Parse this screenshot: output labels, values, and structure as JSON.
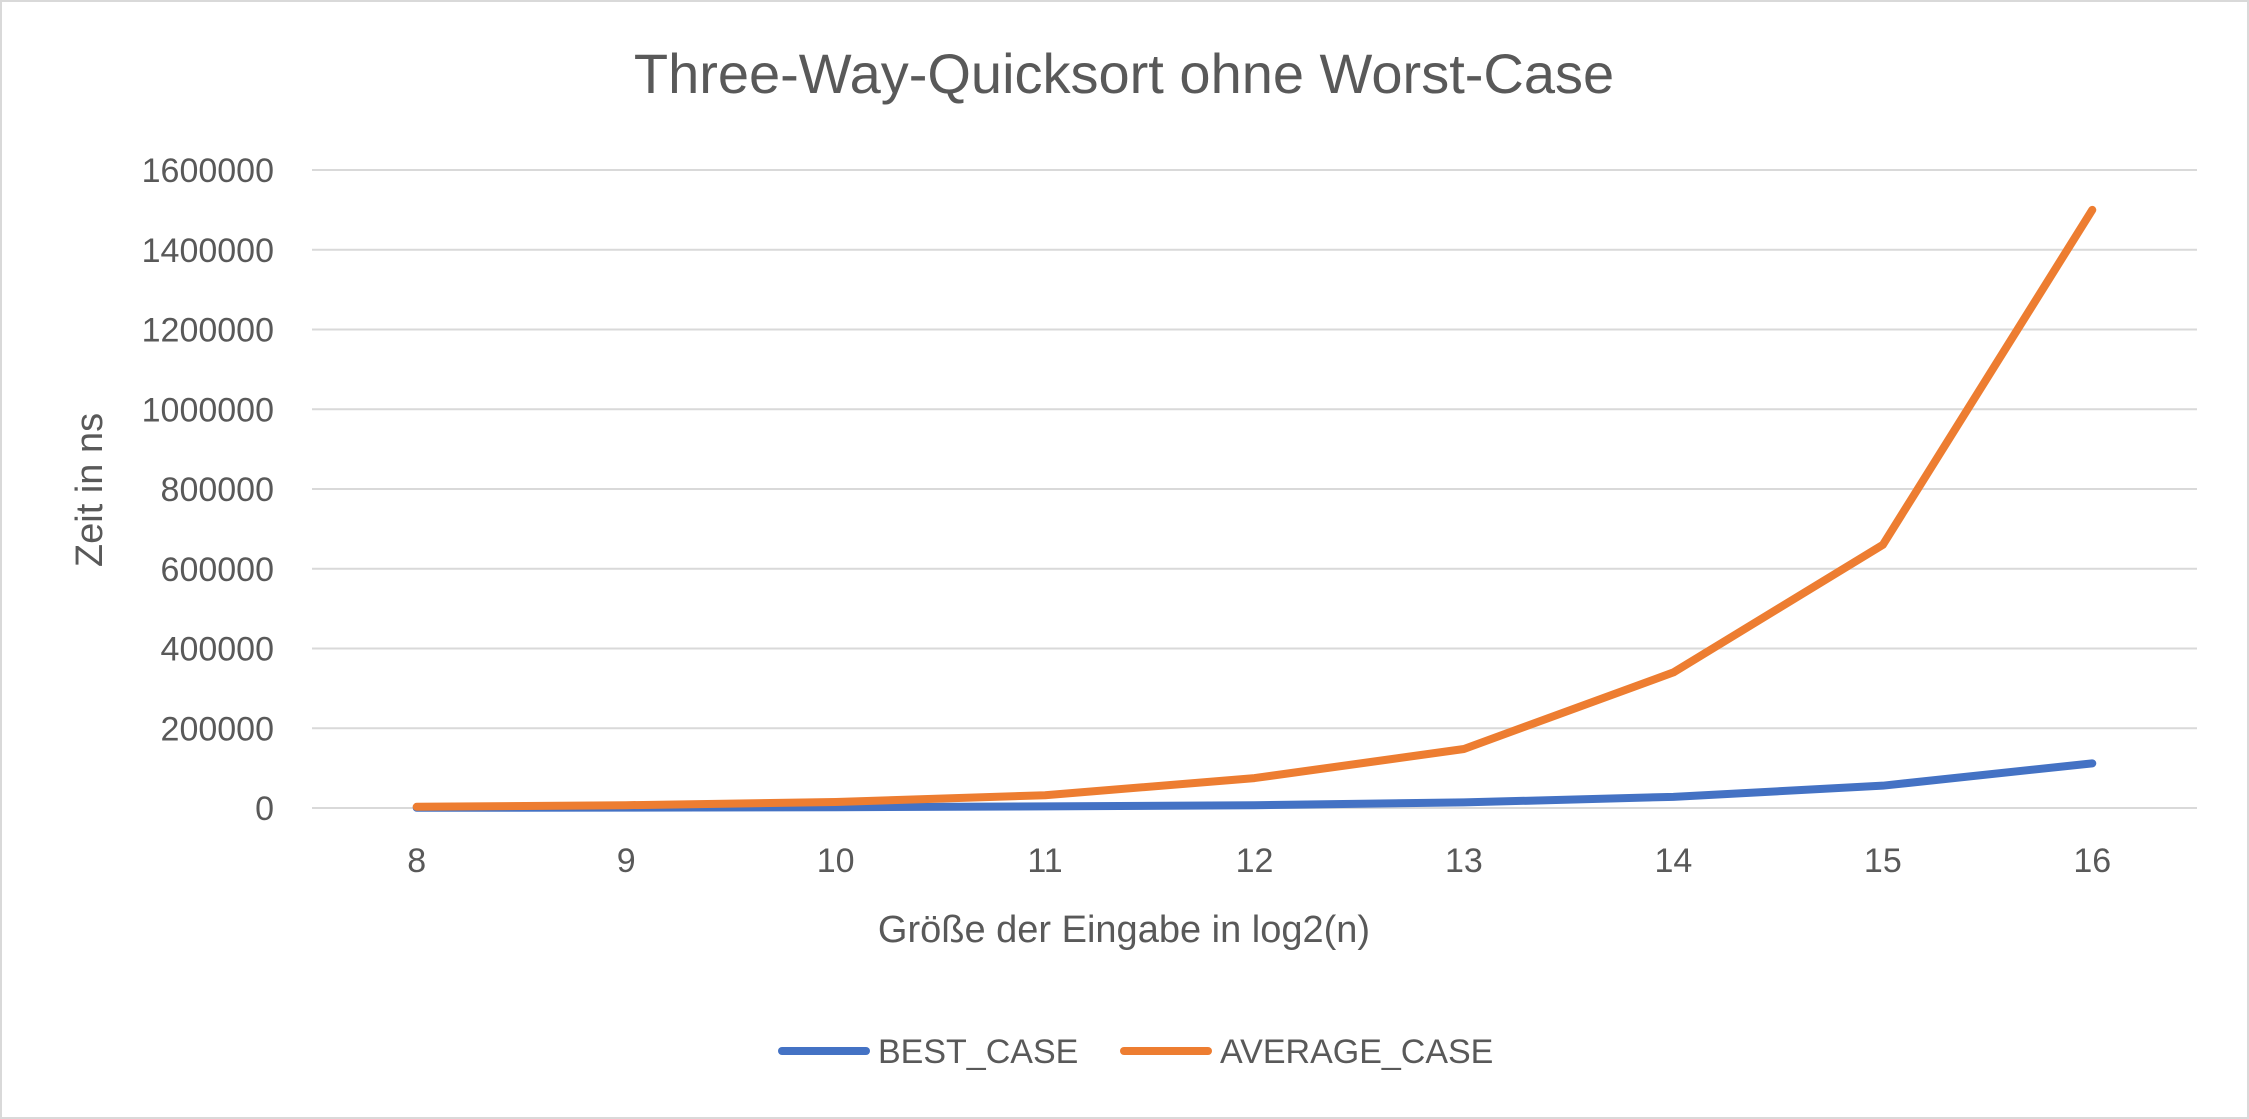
{
  "chart_data": {
    "type": "line",
    "title": "Three-Way-Quicksort ohne Worst-Case",
    "xlabel": "Größe der Eingabe in log2(n)",
    "ylabel": "Zeit in ns",
    "categories": [
      "8",
      "9",
      "10",
      "11",
      "12",
      "13",
      "14",
      "15",
      "16"
    ],
    "ylim": [
      0,
      1600000
    ],
    "yticks": [
      "0",
      "200000",
      "400000",
      "600000",
      "800000",
      "1000000",
      "1200000",
      "1400000",
      "1600000"
    ],
    "grid": true,
    "legend_position": "bottom",
    "series": [
      {
        "name": "BEST_CASE",
        "color": "#4472c4",
        "values": [
          500,
          1000,
          2000,
          4000,
          7000,
          14000,
          28000,
          56000,
          112000
        ]
      },
      {
        "name": "AVERAGE_CASE",
        "color": "#ed7d31",
        "values": [
          3000,
          7000,
          15000,
          32000,
          75000,
          148000,
          340000,
          660000,
          1500000
        ]
      }
    ]
  }
}
